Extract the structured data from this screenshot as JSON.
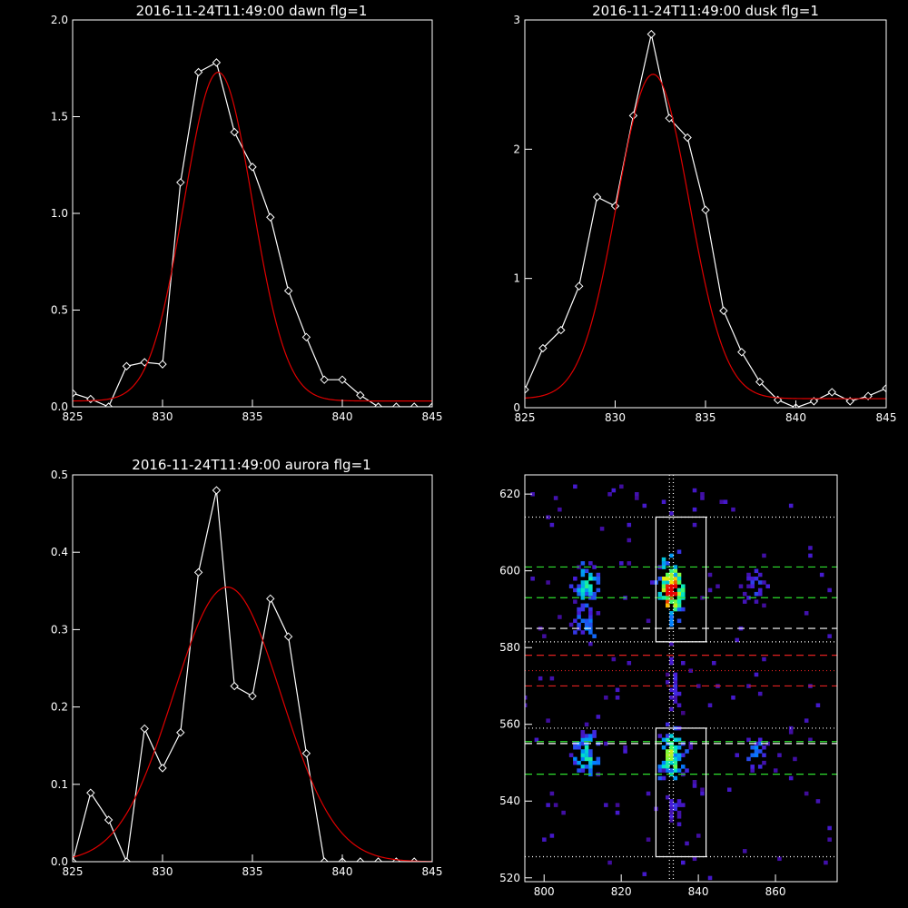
{
  "colors": {
    "background": "#000000",
    "data": "#ffffff",
    "fit": "#e00000",
    "guide_green": "#2ee02e",
    "guide_red": "#e02020",
    "guide_white": "#ffffff"
  },
  "chart_data": [
    {
      "type": "line",
      "title": "2016-11-24T11:49:00 dawn flg=1",
      "xlim": [
        825,
        845
      ],
      "ylim": [
        0,
        2.0
      ],
      "xticks": [
        825,
        830,
        835,
        840,
        845
      ],
      "yticks": [
        "0.0",
        "0.5",
        "1.0",
        "1.5",
        "2.0"
      ],
      "series": [
        {
          "marker": "diamond",
          "color": "#ffffff",
          "x": [
            825,
            826,
            827,
            828,
            829,
            830,
            831,
            832,
            833,
            834,
            835,
            836,
            837,
            838,
            839,
            840,
            841,
            842,
            843,
            844,
            845
          ],
          "y": [
            0.07,
            0.04,
            0.0,
            0.21,
            0.23,
            0.22,
            1.16,
            1.73,
            1.78,
            1.42,
            1.24,
            0.98,
            0.6,
            0.36,
            0.14,
            0.14,
            0.06,
            0.0,
            0.0,
            0.0,
            0.0
          ]
        },
        {
          "type": "gaussian",
          "color": "#e00000",
          "amplitude": 1.7,
          "center": 833.1,
          "sigma": 1.9,
          "offset": 0.03
        }
      ]
    },
    {
      "type": "line",
      "title": "2016-11-24T11:49:00 dusk flg=1",
      "xlim": [
        825,
        845
      ],
      "ylim": [
        0,
        3
      ],
      "xticks": [
        825,
        830,
        835,
        840,
        845
      ],
      "yticks": [
        "0",
        "1",
        "2",
        "3"
      ],
      "series": [
        {
          "marker": "diamond",
          "color": "#ffffff",
          "x": [
            825,
            826,
            827,
            828,
            829,
            830,
            831,
            832,
            833,
            834,
            835,
            836,
            837,
            838,
            839,
            840,
            841,
            842,
            843,
            844,
            845
          ],
          "y": [
            0.14,
            0.46,
            0.6,
            0.94,
            1.63,
            1.56,
            2.26,
            2.89,
            2.24,
            2.09,
            1.53,
            0.75,
            0.43,
            0.2,
            0.06,
            0.0,
            0.05,
            0.12,
            0.05,
            0.09,
            0.15
          ]
        },
        {
          "type": "gaussian",
          "color": "#e00000",
          "amplitude": 2.51,
          "center": 832.1,
          "sigma": 2.0,
          "offset": 0.07
        }
      ]
    },
    {
      "type": "line",
      "title": "2016-11-24T11:49:00 aurora flg=1",
      "xlim": [
        825,
        845
      ],
      "ylim": [
        0,
        0.5
      ],
      "xticks": [
        825,
        830,
        835,
        840,
        845
      ],
      "yticks": [
        "0.0",
        "0.1",
        "0.2",
        "0.3",
        "0.4",
        "0.5"
      ],
      "series": [
        {
          "marker": "diamond",
          "color": "#ffffff",
          "x": [
            825,
            826,
            827,
            828,
            829,
            830,
            831,
            832,
            833,
            834,
            835,
            836,
            837,
            838,
            839,
            840,
            841,
            842,
            843,
            844
          ],
          "y": [
            0.0,
            0.089,
            0.054,
            0.0,
            0.172,
            0.121,
            0.167,
            0.374,
            0.48,
            0.227,
            0.214,
            0.34,
            0.291,
            0.14,
            0.0,
            0.0,
            0.0,
            0.0,
            0.0,
            0.0
          ]
        },
        {
          "type": "gaussian",
          "color": "#e00000",
          "amplitude": 0.355,
          "center": 833.6,
          "sigma": 3.0,
          "offset": 0.0
        }
      ]
    },
    {
      "type": "heatmap",
      "title": "",
      "xlim": [
        795,
        876
      ],
      "ylim": [
        519,
        625
      ],
      "xticks": [
        800,
        820,
        840,
        860
      ],
      "yticks": [
        520,
        540,
        560,
        580,
        600,
        620
      ],
      "clusters": [
        {
          "x": 811,
          "y": 596,
          "sx": 3,
          "sy": 5,
          "peak": 0.65,
          "n": 60
        },
        {
          "x": 811,
          "y": 586,
          "sx": 3,
          "sy": 5,
          "peak": 0.45,
          "n": 30
        },
        {
          "x": 811,
          "y": 552,
          "sx": 3,
          "sy": 5,
          "peak": 0.65,
          "n": 55
        },
        {
          "x": 833,
          "y": 595,
          "sx": 3,
          "sy": 8,
          "peak": 1.0,
          "n": 110
        },
        {
          "x": 833,
          "y": 552,
          "sx": 3,
          "sy": 6,
          "peak": 0.8,
          "n": 75
        },
        {
          "x": 834,
          "y": 570,
          "sx": 1.5,
          "sy": 6,
          "peak": 0.25,
          "n": 20
        },
        {
          "x": 834,
          "y": 538,
          "sx": 2,
          "sy": 5,
          "peak": 0.25,
          "n": 20
        },
        {
          "x": 855,
          "y": 596,
          "sx": 3,
          "sy": 5,
          "peak": 0.3,
          "n": 25
        },
        {
          "x": 855,
          "y": 553,
          "sx": 3,
          "sy": 4,
          "peak": 0.4,
          "n": 25
        }
      ],
      "boxes": [
        {
          "x0": 829,
          "x1": 842,
          "y0": 581.5,
          "y1": 614
        },
        {
          "x0": 829,
          "x1": 842,
          "y0": 525.5,
          "y1": 559
        }
      ],
      "lines": [
        {
          "orient": "h",
          "value": 614,
          "color": "#ffffff",
          "style": "dotted"
        },
        {
          "orient": "h",
          "value": 601,
          "color": "#2ee02e",
          "style": "dashed"
        },
        {
          "orient": "h",
          "value": 593,
          "color": "#2ee02e",
          "style": "dashed"
        },
        {
          "orient": "h",
          "value": 585,
          "color": "#ffffff",
          "style": "dashed"
        },
        {
          "orient": "h",
          "value": 581.5,
          "color": "#ffffff",
          "style": "dotted"
        },
        {
          "orient": "h",
          "value": 578,
          "color": "#e02020",
          "style": "dashed"
        },
        {
          "orient": "h",
          "value": 574,
          "color": "#e02020",
          "style": "dotted"
        },
        {
          "orient": "h",
          "value": 570,
          "color": "#e02020",
          "style": "dashed"
        },
        {
          "orient": "h",
          "value": 559,
          "color": "#ffffff",
          "style": "dotted"
        },
        {
          "orient": "h",
          "value": 555.5,
          "color": "#2ee02e",
          "style": "dashed"
        },
        {
          "orient": "h",
          "value": 555,
          "color": "#ffffff",
          "style": "dashed"
        },
        {
          "orient": "h",
          "value": 547,
          "color": "#2ee02e",
          "style": "dashed"
        },
        {
          "orient": "h",
          "value": 525.5,
          "color": "#ffffff",
          "style": "dotted"
        },
        {
          "orient": "v",
          "value": 832.5,
          "color": "#ffffff",
          "style": "dotted"
        },
        {
          "orient": "v",
          "value": 833.5,
          "color": "#ffffff",
          "style": "dotted"
        }
      ]
    }
  ]
}
